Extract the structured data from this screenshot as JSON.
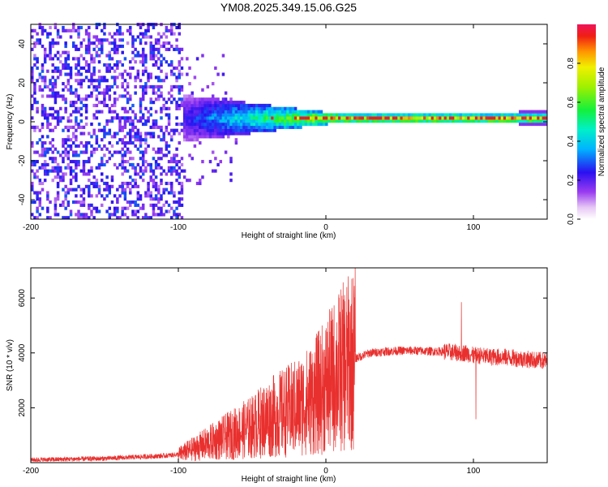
{
  "figure": {
    "title": "YM08.2025.349.15.06.G25"
  },
  "chart_data": [
    {
      "type": "heatmap",
      "title": "YM08.2025.349.15.06.G25",
      "xlabel": "Height of straight line (km)",
      "ylabel": "Frequency (Hz)",
      "xlim": [
        -200,
        150
      ],
      "ylim": [
        -50,
        50
      ],
      "x_ticks": [
        -200,
        -100,
        0,
        100
      ],
      "y_ticks": [
        -40,
        -20,
        0,
        20,
        40
      ],
      "x_tick_labels": [
        "-200",
        "-100",
        "0",
        "100"
      ],
      "y_tick_labels": [
        "-40",
        "-20",
        "0",
        "20",
        "40"
      ],
      "description_of_structure": {
        "noise_region_x": [
          -200,
          -98
        ],
        "noise_amplitude_range": [
          0.1,
          0.3
        ],
        "transition_region_x": [
          -100,
          -20
        ],
        "signal_band_center_hz": 1,
        "signal_band_halfwidth_hz": 2,
        "signal_peak_amplitude": 1.0
      },
      "colorbar": {
        "label": "Normalized spectral amplitude",
        "range": [
          0,
          1
        ],
        "ticks": [
          0.0,
          0.2,
          0.4,
          0.6,
          0.8
        ],
        "tick_labels": [
          "0.0",
          "0.2",
          "0.4",
          "0.6",
          "0.8"
        ]
      }
    },
    {
      "type": "line",
      "xlabel": "Height of straight line (km)",
      "ylabel": "SNR (10 * v/v)",
      "xlim": [
        -200,
        150
      ],
      "ylim": [
        0,
        7100
      ],
      "x_ticks": [
        -200,
        -100,
        0,
        100
      ],
      "y_ticks": [
        2000,
        4000,
        6000
      ],
      "x_tick_labels": [
        "-200",
        "-100",
        "0",
        "100"
      ],
      "y_tick_labels": [
        "2000",
        "4000",
        "6000"
      ],
      "color": "#e8302e",
      "series": [
        {
          "name": "SNR",
          "x": [
            -200,
            -150,
            -110,
            -100,
            -90,
            -80,
            -70,
            -60,
            -50,
            -40,
            -30,
            -20,
            -10,
            0,
            10,
            20,
            30,
            40,
            50,
            60,
            70,
            80,
            90,
            95,
            100,
            105,
            110,
            120,
            130,
            140,
            150
          ],
          "values": [
            100,
            150,
            250,
            300,
            500,
            700,
            900,
            1100,
            1300,
            1600,
            1800,
            2000,
            2300,
            2800,
            3400,
            3800,
            4000,
            4050,
            4080,
            4080,
            4060,
            4050,
            4000,
            4000,
            3900,
            3900,
            3850,
            3850,
            3800,
            3750,
            3700
          ]
        }
      ]
    }
  ]
}
